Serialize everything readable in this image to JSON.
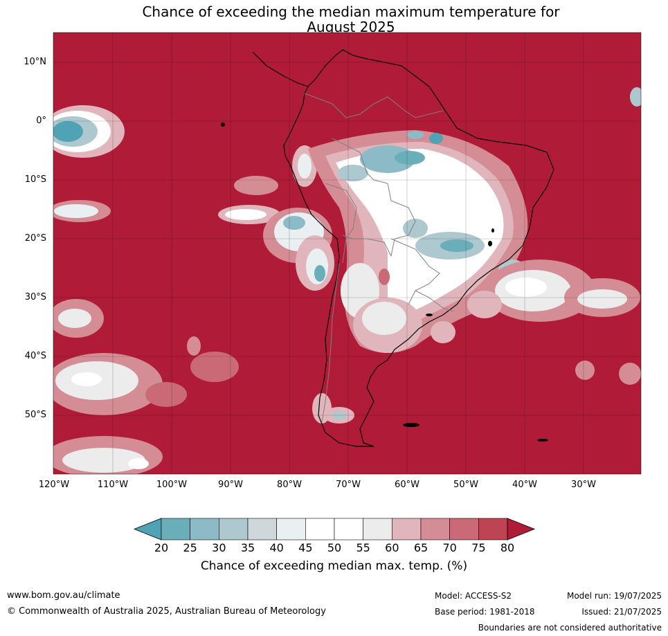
{
  "title_line1": "Chance of exceeding the median maximum temperature for",
  "title_line2": "August 2025",
  "lat_labels": [
    "10°N",
    "0°",
    "10°S",
    "20°S",
    "30°S",
    "40°S",
    "50°S"
  ],
  "lon_labels": [
    "120°W",
    "110°W",
    "100°W",
    "90°W",
    "80°W",
    "70°W",
    "60°W",
    "50°W",
    "40°W",
    "30°W"
  ],
  "colorbar": {
    "ticks": [
      "20",
      "25",
      "30",
      "35",
      "40",
      "45",
      "50",
      "55",
      "60",
      "65",
      "70",
      "75",
      "80"
    ],
    "colors": [
      "#4fa3b4",
      "#6aaeba",
      "#8cbac6",
      "#adc8cf",
      "#ced8da",
      "#eaf0f2",
      "#ffffff",
      "#ffffff",
      "#ececec",
      "#e0b6bc",
      "#d48c95",
      "#c96a76",
      "#be4453",
      "#b01c37"
    ],
    "label": "Chance of exceeding median max. temp. (%)"
  },
  "footer": {
    "url": "www.bom.gov.au/climate",
    "copyright": "© Commonwealth of Australia 2025, Australian Bureau of Meteorology",
    "model": "Model: ACCESS-S2",
    "base_period": "Base period: 1981-2018",
    "model_run": "Model run: 19/07/2025",
    "issued": "Issued: 21/07/2025",
    "disclaimer": "Boundaries are not considered authoritative"
  }
}
